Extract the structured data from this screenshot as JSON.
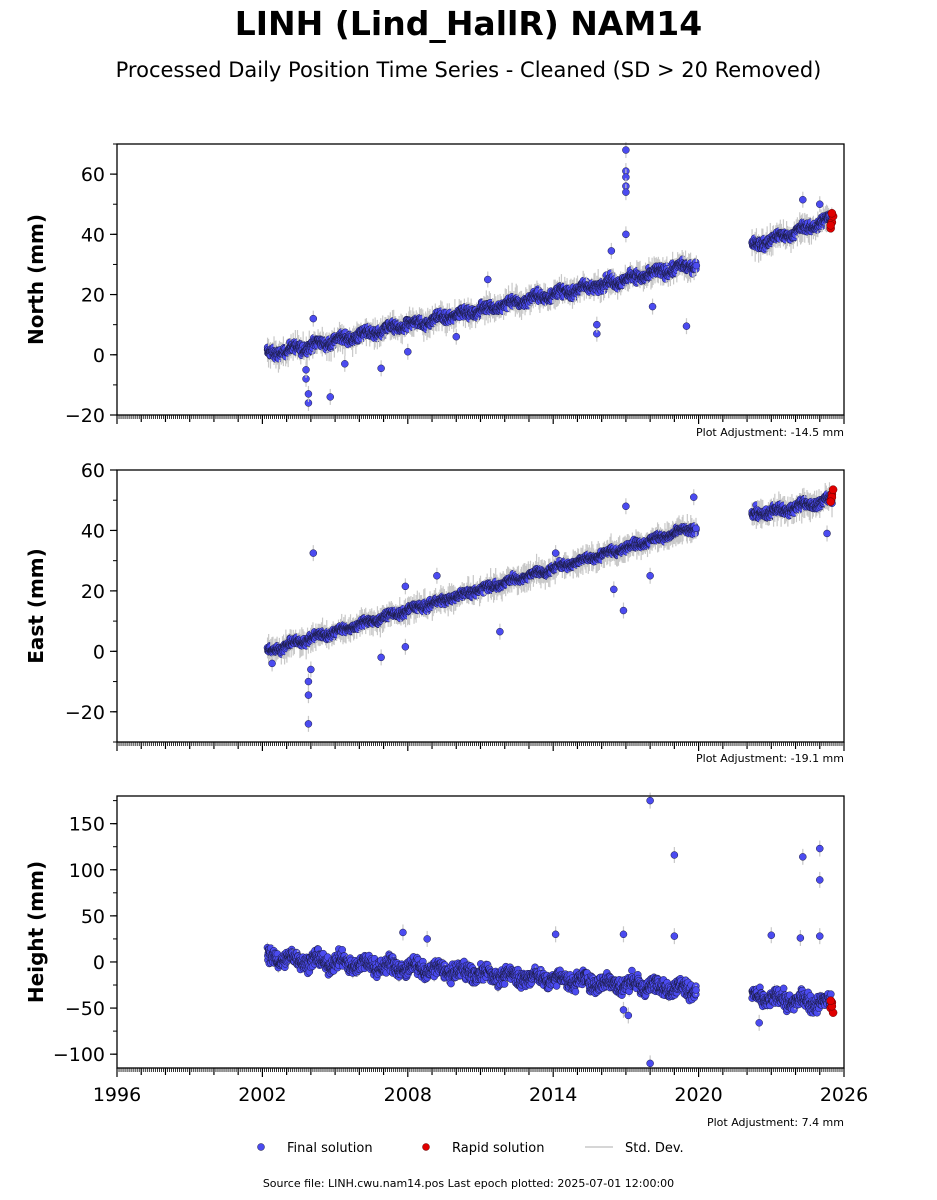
{
  "title": "LINH (Lind_HallR) NAM14",
  "subtitle": "Processed Daily Position Time Series - Cleaned (SD > 20 Removed)",
  "legend": {
    "final": "Final solution",
    "rapid": "Rapid solution",
    "std": "Std. Dev."
  },
  "source_note": "Source file: LINH.cwu.nam14.pos  Last epoch plotted: 2025-07-01 12:00:00",
  "colors": {
    "final": "#4b4bf0",
    "final_edge": "#1a1a40",
    "rapid": "#e00000",
    "std": "#c8c8c8"
  },
  "chart_data": [
    {
      "type": "scatter",
      "ylabel": "North (mm)",
      "adjustment": "Plot Adjustment: -14.5 mm",
      "xlim": [
        1996,
        2026
      ],
      "ylim": [
        -20,
        70
      ],
      "yticks": [
        -20,
        0,
        20,
        40,
        60
      ],
      "xticks": [],
      "segments": [
        {
          "x0": 2002.2,
          "x1": 2019.9,
          "y0": 0,
          "y1": 30,
          "noise": 2
        },
        {
          "x0": 2022.2,
          "x1": 2025.5,
          "y0": 36,
          "y1": 45,
          "noise": 2
        }
      ],
      "outliers": [
        [
          2003.9,
          -16
        ],
        [
          2003.9,
          -13
        ],
        [
          2003.8,
          -8
        ],
        [
          2003.8,
          -5
        ],
        [
          2004.8,
          -14
        ],
        [
          2004.1,
          12
        ],
        [
          2005.4,
          -3
        ],
        [
          2006.9,
          -4.5
        ],
        [
          2008.0,
          1
        ],
        [
          2010.0,
          6
        ],
        [
          2011.3,
          25
        ],
        [
          2015.8,
          7
        ],
        [
          2015.8,
          10
        ],
        [
          2016.4,
          34.5
        ],
        [
          2017.0,
          68
        ],
        [
          2017.0,
          61
        ],
        [
          2017.0,
          59
        ],
        [
          2017.0,
          56
        ],
        [
          2017.0,
          54
        ],
        [
          2017.0,
          40
        ],
        [
          2018.1,
          16
        ],
        [
          2019.5,
          9.5
        ],
        [
          2024.3,
          51.5
        ],
        [
          2025.0,
          50
        ]
      ],
      "rapid": [
        [
          2025.45,
          42
        ],
        [
          2025.5,
          44
        ],
        [
          2025.55,
          46
        ],
        [
          2025.5,
          47
        ],
        [
          2025.45,
          43
        ]
      ]
    },
    {
      "type": "scatter",
      "ylabel": "East (mm)",
      "adjustment": "Plot Adjustment: -19.1 mm",
      "xlim": [
        1996,
        2026
      ],
      "ylim": [
        -30,
        60
      ],
      "yticks": [
        -20,
        0,
        20,
        40,
        60
      ],
      "xticks": [],
      "segments": [
        {
          "x0": 2002.2,
          "x1": 2019.9,
          "y0": 0,
          "y1": 41,
          "noise": 1.5
        },
        {
          "x0": 2022.2,
          "x1": 2025.5,
          "y0": 45,
          "y1": 50,
          "noise": 2
        }
      ],
      "outliers": [
        [
          2004.1,
          32.5
        ],
        [
          2003.9,
          -24
        ],
        [
          2003.9,
          -14.5
        ],
        [
          2003.9,
          -10
        ],
        [
          2004.0,
          -6
        ],
        [
          2006.9,
          -2
        ],
        [
          2002.4,
          -4
        ],
        [
          2007.9,
          1.5
        ],
        [
          2007.9,
          21.5
        ],
        [
          2009.2,
          25
        ],
        [
          2011.8,
          6.5
        ],
        [
          2014.1,
          32.5
        ],
        [
          2016.5,
          20.5
        ],
        [
          2016.9,
          13.5
        ],
        [
          2017.0,
          48
        ],
        [
          2018.0,
          25
        ],
        [
          2019.8,
          51
        ],
        [
          2025.3,
          39
        ]
      ],
      "rapid": [
        [
          2025.45,
          50
        ],
        [
          2025.5,
          52
        ],
        [
          2025.55,
          53.5
        ],
        [
          2025.5,
          51
        ],
        [
          2025.45,
          49.5
        ]
      ]
    },
    {
      "type": "scatter",
      "ylabel": "Height (mm)",
      "adjustment": "Plot Adjustment: 7.4 mm",
      "xlim": [
        1996,
        2026
      ],
      "ylim": [
        -115,
        180
      ],
      "yticks": [
        -100,
        -50,
        0,
        50,
        100,
        150
      ],
      "xticks": [
        "1996",
        "2002",
        "2008",
        "2014",
        "2020",
        "2026"
      ],
      "segments": [
        {
          "x0": 2002.2,
          "x1": 2019.9,
          "y0": 5,
          "y1": -30,
          "noise": 10
        },
        {
          "x0": 2022.2,
          "x1": 2025.5,
          "y0": -38,
          "y1": -45,
          "noise": 10
        }
      ],
      "outliers": [
        [
          2018.0,
          175
        ],
        [
          2019.0,
          116
        ],
        [
          2018.0,
          -110
        ],
        [
          2007.8,
          32
        ],
        [
          2008.8,
          25
        ],
        [
          2014.1,
          30
        ],
        [
          2016.9,
          30
        ],
        [
          2019.0,
          28
        ],
        [
          2023.0,
          29
        ],
        [
          2024.2,
          26
        ],
        [
          2024.3,
          114
        ],
        [
          2025.0,
          123
        ],
        [
          2025.0,
          89
        ],
        [
          2025.0,
          28
        ],
        [
          2022.5,
          -66
        ],
        [
          2017.1,
          -58
        ],
        [
          2016.9,
          -52
        ]
      ],
      "rapid": [
        [
          2025.45,
          -50
        ],
        [
          2025.5,
          -44
        ],
        [
          2025.55,
          -55
        ],
        [
          2025.5,
          -48
        ],
        [
          2025.45,
          -42
        ]
      ]
    }
  ]
}
